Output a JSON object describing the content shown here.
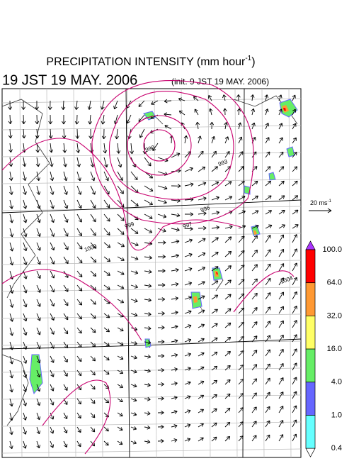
{
  "header": {
    "title": "PRECIPITATION INTENSITY (mm hour",
    "title_sup": "-1",
    "title_close": ")",
    "time": "19 JST 19 MAY. 2006",
    "init": "(init. 9 JST 19 MAY. 2006)"
  },
  "wind_legend": {
    "label": "20 ms",
    "label_sup": "-1"
  },
  "colorbar": {
    "labels": [
      "100.0",
      "64.0",
      "32.0",
      "16.0",
      "4.0",
      "1.0",
      "0.4"
    ],
    "colors": [
      "#ff0000",
      "#ff9933",
      "#ffff66",
      "#66ee66",
      "#6666ff",
      "#66ffff"
    ],
    "over_color": "#aa33ff",
    "under_color": "#ffffff"
  },
  "contour_labels": [
    "990",
    "993",
    "996",
    "997",
    "999",
    "1000",
    "1004"
  ]
}
